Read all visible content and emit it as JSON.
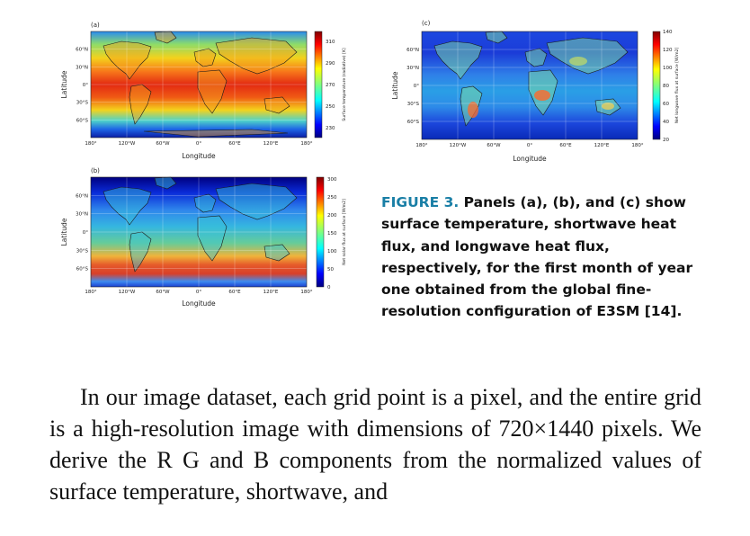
{
  "figure": {
    "caption_label": "FIGURE 3.",
    "caption_text": "Panels (a), (b), and (c) show surface temperature, shortwave heat flux, and longwave heat flux, respectively, for the first month of year one obtained from the global fine-resolution configuration of E3SM [14]."
  },
  "panels": [
    {
      "id": "a",
      "label": "(a)",
      "ylabel": "Latitude",
      "xlabel": "Longitude",
      "colorbar_label": "Surface temperature (radiative) [K]",
      "colorbar_ticks": [
        "310",
        "290",
        "270",
        "250",
        "230"
      ],
      "lat_ticks": [
        "60°N",
        "30°N",
        "0°",
        "30°S",
        "60°S"
      ],
      "lon_ticks": [
        "180°",
        "120°W",
        "60°W",
        "0°",
        "60°E",
        "120°E",
        "180°"
      ]
    },
    {
      "id": "b",
      "label": "(b)",
      "ylabel": "Latitude",
      "xlabel": "Longitude",
      "colorbar_label": "Net solar flux at surface [W/m2]",
      "colorbar_ticks": [
        "300",
        "250",
        "200",
        "150",
        "100",
        "50",
        "0"
      ],
      "lat_ticks": [
        "60°N",
        "30°N",
        "0°",
        "30°S",
        "60°S"
      ],
      "lon_ticks": [
        "180°",
        "120°W",
        "60°W",
        "0°",
        "60°E",
        "120°E",
        "180°"
      ]
    },
    {
      "id": "c",
      "label": "(c)",
      "ylabel": "Latitude",
      "xlabel": "Longitude",
      "colorbar_label": "Net longwave flux at surface [W/m2]",
      "colorbar_ticks": [
        "140",
        "120",
        "100",
        "80",
        "60",
        "40",
        "20"
      ],
      "lat_ticks": [
        "60°N",
        "30°N",
        "0°",
        "30°S",
        "60°S"
      ],
      "lon_ticks": [
        "180°",
        "120°W",
        "60°W",
        "0°",
        "60°E",
        "120°E",
        "180°"
      ]
    }
  ],
  "body": {
    "part1": "In our image dataset, each grid point is a pixel, and the entire grid is a high-resolution image with dimensions of ",
    "dims_a": "720",
    "times": "×",
    "dims_b": "1440",
    "part2": " pixels. We derive the R G and B components from the normalized values of surface temperature, shortwave, and"
  },
  "colors": {
    "caption_label": "#1a7fa6",
    "jet_low": "#00007f",
    "jet_high": "#7f0000"
  }
}
